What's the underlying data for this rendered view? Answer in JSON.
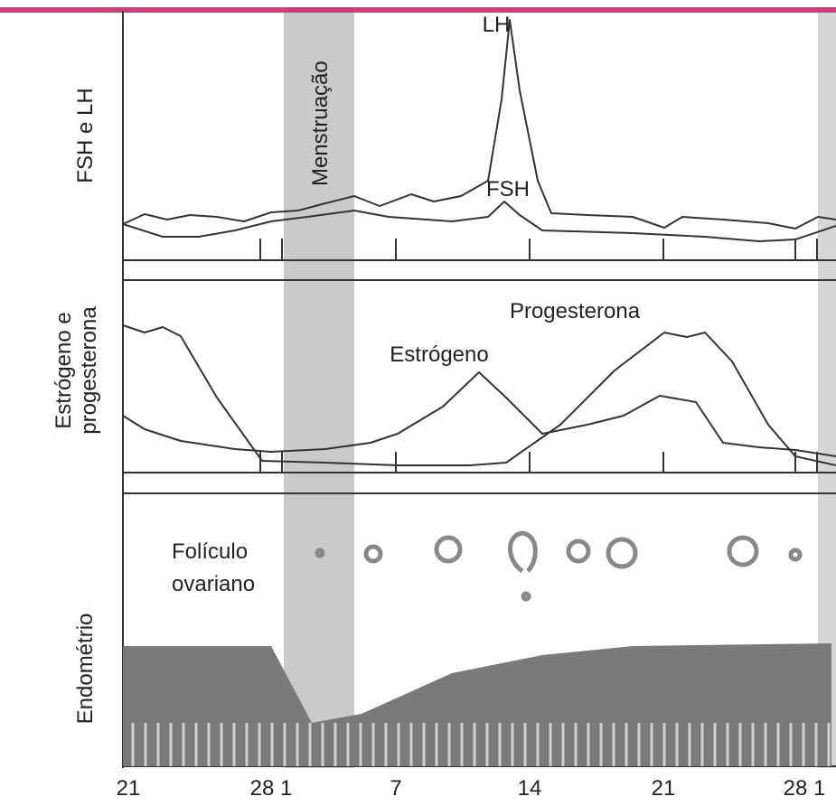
{
  "band_label": "Menstruação",
  "panels": [
    {
      "label": [
        "FSH e LH"
      ],
      "curve_labels": [
        "LH",
        "FSH"
      ]
    },
    {
      "label": [
        "Estrógeno e",
        "progesterona"
      ],
      "curve_labels": [
        "Progesterona",
        "Estrógeno"
      ]
    },
    {
      "label": [
        "Endométrio"
      ],
      "annotation": [
        "Folículo",
        "ovariano"
      ]
    }
  ],
  "x_labels": [
    "21",
    "28 1",
    "7",
    "14",
    "21",
    "28 1"
  ]
}
